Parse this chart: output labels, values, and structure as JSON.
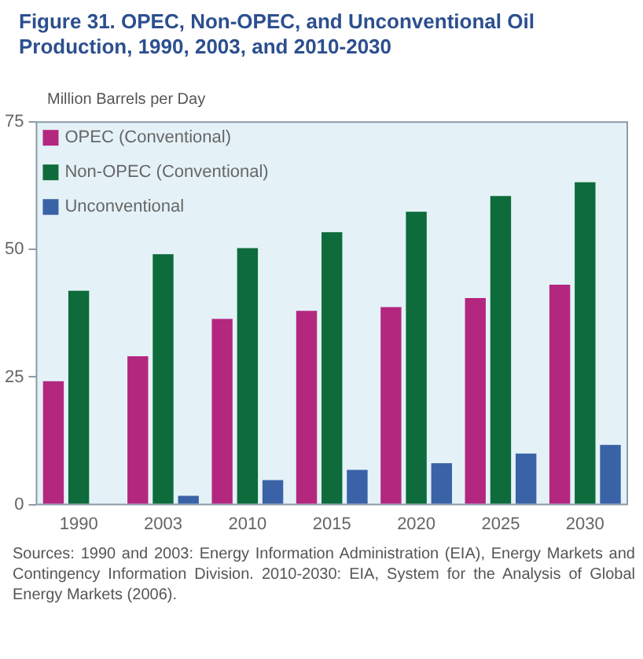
{
  "chart_data": {
    "type": "bar",
    "title": "Figure 31.  OPEC, Non-OPEC, and Unconventional Oil Production, 1990, 2003, and 2010-2030",
    "ylabel": "Million Barrels per Day",
    "categories": [
      "1990",
      "2003",
      "2010",
      "2015",
      "2020",
      "2025",
      "2030"
    ],
    "series": [
      {
        "name": "OPEC (Conventional)",
        "color": "#b3277f",
        "values": [
          24.2,
          29.1,
          36.4,
          38.0,
          38.7,
          40.5,
          43.1
        ]
      },
      {
        "name": "Non-OPEC (Conventional)",
        "color": "#0e6b3b",
        "values": [
          41.9,
          49.1,
          50.3,
          53.4,
          57.4,
          60.5,
          63.2
        ]
      },
      {
        "name": "Unconventional",
        "color": "#3a62a6",
        "values": [
          null,
          1.7,
          4.8,
          6.8,
          8.1,
          10.0,
          11.7
        ]
      }
    ],
    "ylim": [
      0,
      75
    ],
    "yticks": [
      0,
      25,
      50,
      75
    ],
    "grid": false,
    "legend": "top left",
    "annotations": [
      "Sources: 1990 and 2003: Energy Information Administration (EIA), Energy Markets and Contingency Information Division. 2010-2030: EIA, System for the Analysis of Global Energy Markets (2006)."
    ]
  }
}
